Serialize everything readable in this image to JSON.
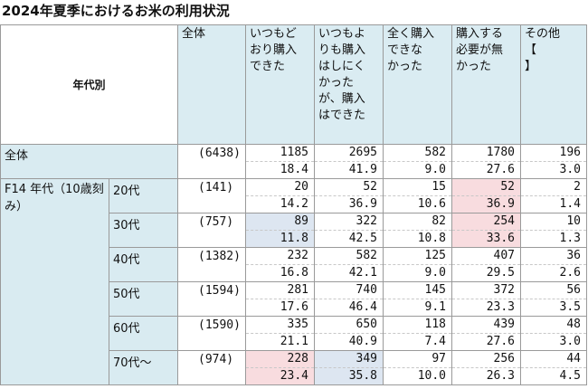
{
  "title": "2024年夏季におけるお米の利用状況",
  "header": {
    "axis_label": "年代別",
    "total": "全体",
    "columns": [
      "いつもど\nおり購入\nできた",
      "いつもよ\nりも購入\nはしにく\nかった\nが、購入\nはできた",
      "全く購入\nできな\nかった",
      "購入する\n必要が無\nかった",
      "その他\n【\n】"
    ]
  },
  "total_row": {
    "label": "全体",
    "n": "(6438)",
    "counts": [
      "1185",
      "2695",
      "582",
      "1780",
      "196"
    ],
    "pcts": [
      "18.4",
      "41.9",
      "9.0",
      "27.6",
      "3.0"
    ]
  },
  "group_label": "F14 年代（10歳刻み）",
  "rows": [
    {
      "age": "20代",
      "n": "(141)",
      "counts": [
        "20",
        "52",
        "15",
        "52",
        "2"
      ],
      "pcts": [
        "14.2",
        "36.9",
        "10.6",
        "36.9",
        "1.4"
      ]
    },
    {
      "age": "30代",
      "n": "(757)",
      "counts": [
        "89",
        "322",
        "82",
        "254",
        "10"
      ],
      "pcts": [
        "11.8",
        "42.5",
        "10.8",
        "33.6",
        "1.3"
      ]
    },
    {
      "age": "40代",
      "n": "(1382)",
      "counts": [
        "232",
        "582",
        "125",
        "407",
        "36"
      ],
      "pcts": [
        "16.8",
        "42.1",
        "9.0",
        "29.5",
        "2.6"
      ]
    },
    {
      "age": "50代",
      "n": "(1594)",
      "counts": [
        "281",
        "740",
        "145",
        "372",
        "56"
      ],
      "pcts": [
        "17.6",
        "46.4",
        "9.1",
        "23.3",
        "3.5"
      ]
    },
    {
      "age": "60代",
      "n": "(1590)",
      "counts": [
        "335",
        "650",
        "118",
        "439",
        "48"
      ],
      "pcts": [
        "21.1",
        "40.9",
        "7.4",
        "27.6",
        "3.0"
      ]
    },
    {
      "age": "70代～",
      "n": "(974)",
      "counts": [
        "228",
        "349",
        "97",
        "256",
        "44"
      ],
      "pcts": [
        "23.4",
        "35.8",
        "10.0",
        "26.3",
        "4.5"
      ]
    }
  ],
  "highlights": {
    "high_color": "#f8dcdf",
    "low_color": "#dde6f1"
  }
}
